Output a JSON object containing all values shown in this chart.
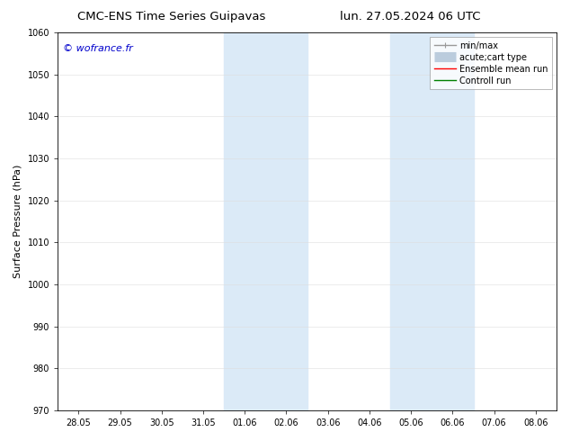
{
  "title_left": "CMC-ENS Time Series Guipavas",
  "title_right": "lun. 27.05.2024 06 UTC",
  "ylabel": "Surface Pressure (hPa)",
  "ylim": [
    970,
    1060
  ],
  "yticks": [
    970,
    980,
    990,
    1000,
    1010,
    1020,
    1030,
    1040,
    1050,
    1060
  ],
  "xtick_labels": [
    "28.05",
    "29.05",
    "30.05",
    "31.05",
    "01.06",
    "02.06",
    "03.06",
    "04.06",
    "05.06",
    "06.06",
    "07.06",
    "08.06"
  ],
  "xtick_positions": [
    0,
    1,
    2,
    3,
    4,
    5,
    6,
    7,
    8,
    9,
    10,
    11
  ],
  "xlim": [
    -0.5,
    11.5
  ],
  "shaded_regions": [
    {
      "xmin": 3.5,
      "xmax": 5.5,
      "color": "#dbeaf7"
    },
    {
      "xmin": 7.5,
      "xmax": 9.5,
      "color": "#dbeaf7"
    }
  ],
  "watermark": "© wofrance.fr",
  "watermark_color": "#0000cc",
  "legend_items": [
    {
      "label": "min/max",
      "color": "#999999",
      "lw": 1.0,
      "ls": "-",
      "type": "errorbar"
    },
    {
      "label": "acute;cart type",
      "color": "#bbccdd",
      "lw": 8,
      "ls": "-",
      "type": "thick"
    },
    {
      "label": "Ensemble mean run",
      "color": "red",
      "lw": 1.0,
      "ls": "-",
      "type": "line"
    },
    {
      "label": "Controll run",
      "color": "green",
      "lw": 1.0,
      "ls": "-",
      "type": "line"
    }
  ],
  "bg_color": "#ffffff",
  "grid_color": "#dddddd",
  "title_fontsize": 9.5,
  "tick_fontsize": 7,
  "ylabel_fontsize": 8,
  "watermark_fontsize": 8,
  "legend_fontsize": 7
}
